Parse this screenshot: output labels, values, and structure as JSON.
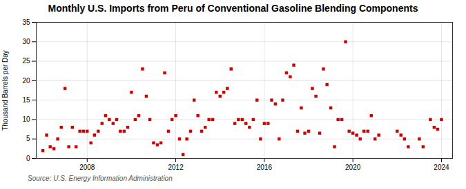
{
  "chart_data": {
    "type": "scatter",
    "title": "Monthly U.S. Imports from Peru of Conventional Gasoline Blending Components",
    "ylabel": "Thousand Barrels per Day",
    "source": "Source: U.S. Energy Information Administration",
    "color": "#cc0000",
    "marker": "square",
    "grid": true,
    "xlim": [
      2005.7,
      2024.5
    ],
    "ylim": [
      0,
      35
    ],
    "xticks": [
      2008,
      2012,
      2016,
      2020,
      2024
    ],
    "yticks": [
      0,
      5,
      10,
      15,
      20,
      25,
      30,
      35
    ],
    "x": [
      2006.0,
      2006.17,
      2006.33,
      2006.5,
      2006.67,
      2006.83,
      2007.0,
      2007.17,
      2007.33,
      2007.5,
      2007.67,
      2007.83,
      2008.0,
      2008.17,
      2008.33,
      2008.5,
      2008.67,
      2008.83,
      2009.0,
      2009.17,
      2009.33,
      2009.5,
      2009.67,
      2009.83,
      2010.0,
      2010.17,
      2010.33,
      2010.5,
      2010.67,
      2010.83,
      2011.0,
      2011.17,
      2011.33,
      2011.5,
      2011.67,
      2011.83,
      2012.0,
      2012.17,
      2012.33,
      2012.5,
      2012.67,
      2012.83,
      2013.0,
      2013.17,
      2013.33,
      2013.5,
      2013.67,
      2013.83,
      2014.0,
      2014.17,
      2014.33,
      2014.5,
      2014.67,
      2014.83,
      2015.0,
      2015.17,
      2015.33,
      2015.5,
      2015.67,
      2015.83,
      2016.0,
      2016.17,
      2016.33,
      2016.5,
      2016.67,
      2016.83,
      2017.0,
      2017.17,
      2017.33,
      2017.5,
      2017.67,
      2017.83,
      2018.0,
      2018.17,
      2018.33,
      2018.5,
      2018.67,
      2018.83,
      2019.0,
      2019.17,
      2019.33,
      2019.5,
      2019.67,
      2019.83,
      2020.0,
      2020.17,
      2020.33,
      2020.5,
      2020.67,
      2020.83,
      2021.0,
      2021.17,
      2022.0,
      2022.17,
      2022.33,
      2022.5,
      2023.0,
      2023.17,
      2023.5,
      2023.67,
      2023.83,
      2024.0
    ],
    "values": [
      2.0,
      6.0,
      3.0,
      2.5,
      5.0,
      8.0,
      18.0,
      3.0,
      8.0,
      3.0,
      7.0,
      7.0,
      7.0,
      4.0,
      6.0,
      7.0,
      9.0,
      11.0,
      10.0,
      9.0,
      10.0,
      7.0,
      7.0,
      8.0,
      17.0,
      10.0,
      11.0,
      23.0,
      16.0,
      10.0,
      4.0,
      3.5,
      4.0,
      22.0,
      7.0,
      10.0,
      11.0,
      5.0,
      1.0,
      5.0,
      7.0,
      15.0,
      11.0,
      7.0,
      8.0,
      10.0,
      10.0,
      17.0,
      16.0,
      17.0,
      18.0,
      23.0,
      9.0,
      10.0,
      10.0,
      9.0,
      8.0,
      10.0,
      15.0,
      5.0,
      9.0,
      9.0,
      15.0,
      14.0,
      5.0,
      15.0,
      22.0,
      21.0,
      24.0,
      7.0,
      13.0,
      6.5,
      7.0,
      18.0,
      16.0,
      6.5,
      23.0,
      19.0,
      13.0,
      3.0,
      10.0,
      10.0,
      30.0,
      7.0,
      6.5,
      6.0,
      5.0,
      7.0,
      7.0,
      11.0,
      5.0,
      6.0,
      7.0,
      6.0,
      5.0,
      3.0,
      5.0,
      3.0,
      10.0,
      8.0,
      7.5,
      10.0
    ]
  }
}
